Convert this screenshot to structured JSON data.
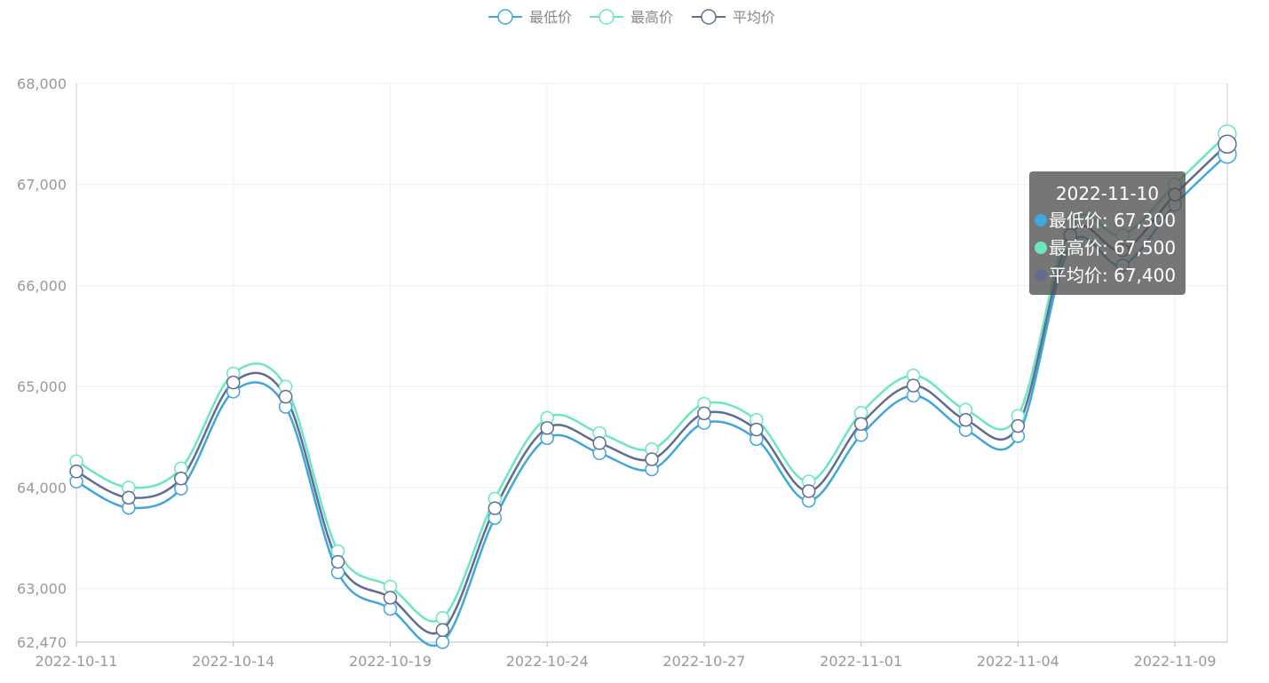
{
  "chart_data": {
    "type": "line",
    "x": [
      "2022-10-11",
      "2022-10-12",
      "2022-10-13",
      "2022-10-14",
      "2022-10-17",
      "2022-10-18",
      "2022-10-19",
      "2022-10-20",
      "2022-10-21",
      "2022-10-24",
      "2022-10-25",
      "2022-10-26",
      "2022-10-27",
      "2022-10-28",
      "2022-10-31",
      "2022-11-01",
      "2022-11-02",
      "2022-11-03",
      "2022-11-04",
      "2022-11-07",
      "2022-11-08",
      "2022-11-09",
      "2022-11-10"
    ],
    "x_tick_labels": [
      "2022-10-11",
      "2022-10-14",
      "2022-10-19",
      "2022-10-24",
      "2022-10-27",
      "2022-11-01",
      "2022-11-04",
      "2022-11-09"
    ],
    "series": [
      {
        "name": "最低价",
        "color": "#3fa7dc",
        "values": [
          64060,
          63800,
          63990,
          64950,
          64800,
          63160,
          62800,
          62470,
          63700,
          64490,
          64340,
          64180,
          64640,
          64480,
          63870,
          64520,
          64910,
          64570,
          64510,
          66400,
          66200,
          66800,
          67300
        ]
      },
      {
        "name": "最高价",
        "color": "#6be6c1",
        "values": [
          64260,
          64000,
          64190,
          65130,
          65000,
          63370,
          63020,
          62710,
          63890,
          64690,
          64540,
          64380,
          64830,
          64670,
          64060,
          64740,
          65110,
          64770,
          64710,
          66600,
          66500,
          67000,
          67500
        ]
      },
      {
        "name": "平均价",
        "color": "#626c91",
        "values": [
          64160,
          63900,
          64090,
          65040,
          64900,
          63265,
          62910,
          62590,
          63795,
          64590,
          64440,
          64280,
          64735,
          64575,
          63965,
          64630,
          65010,
          64670,
          64610,
          66500,
          66350,
          66900,
          67400
        ]
      }
    ],
    "y_ticks": [
      "62,470",
      "63,000",
      "64,000",
      "65,000",
      "66,000",
      "67,000",
      "68,000"
    ],
    "ylim": [
      62470,
      68000
    ],
    "grid": true,
    "legend_position": "top-center"
  },
  "tooltip": {
    "title": "2022-11-10",
    "rows": [
      {
        "label": "最低价: 67,300",
        "color": "#3fa7dc"
      },
      {
        "label": "最高价: 67,500",
        "color": "#6be6c1"
      },
      {
        "label": "平均价: 67,400",
        "color": "#626c91"
      }
    ]
  }
}
